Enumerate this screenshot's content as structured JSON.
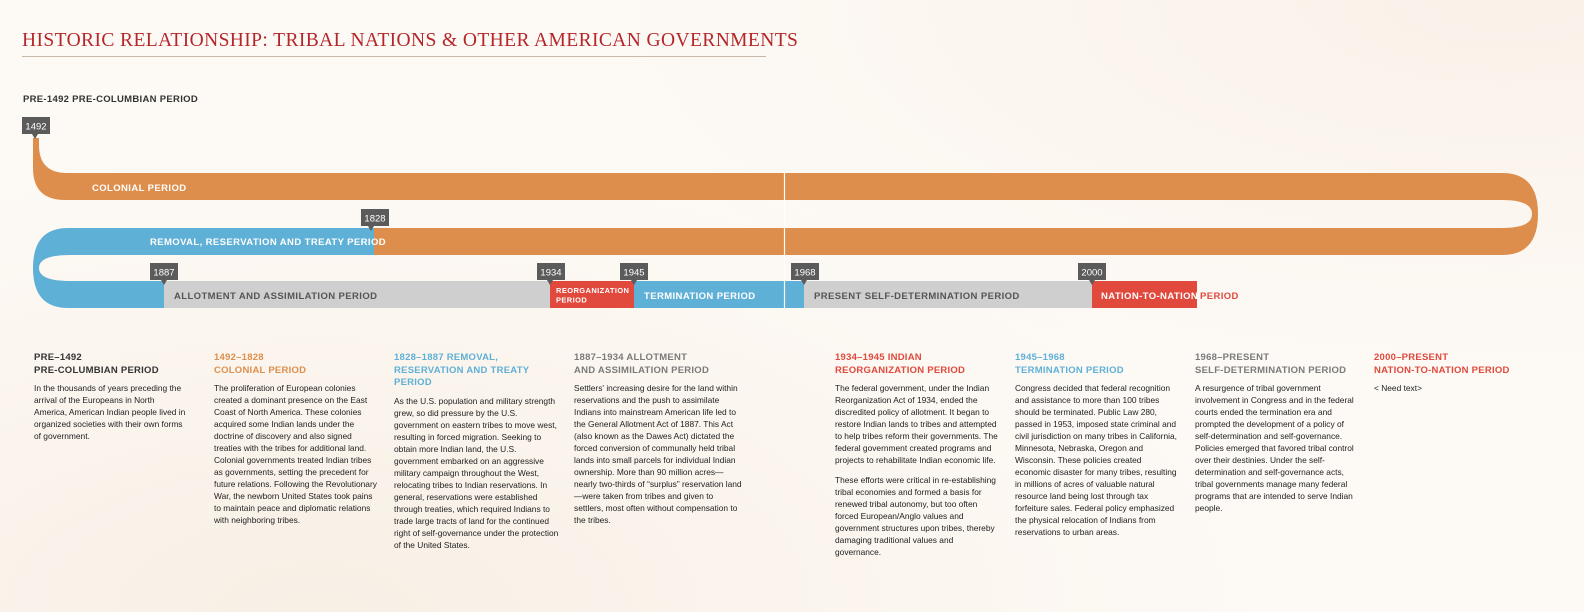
{
  "title": "HISTORIC RELATIONSHIP: TRIBAL NATIONS & OTHER AMERICAN GOVERNMENTS",
  "top_period_heading": "PRE-1492 PRE-COLUMBIAN PERIOD",
  "colors": {
    "orange": "#dd8e4c",
    "blue": "#5fb0d6",
    "gray": "#cfcfcf",
    "red": "#e0493c",
    "marker": "#5b5b5b",
    "title_red": "#b5262a"
  },
  "timeline": {
    "years": {
      "y1492": "1492",
      "y1828": "1828",
      "y1887": "1887",
      "y1934": "1934",
      "y1945": "1945",
      "y1968": "1968",
      "y2000": "2000"
    },
    "bands": {
      "colonial": "COLONIAL PERIOD",
      "removal": "REMOVAL, RESERVATION AND TREATY PERIOD",
      "allotment": "ALLOTMENT AND ASSIMILATION PERIOD",
      "reorg_line1": "REORGANIZATION",
      "reorg_line2": "PERIOD",
      "termination": "TERMINATION PERIOD",
      "self_determination": "PRESENT SELF-DETERMINATION PERIOD",
      "nation_a": "NATION-TO-NATION",
      "nation_b": "PERIOD"
    }
  },
  "columns": [
    {
      "h1": "PRE–1492",
      "h2": "PRE-COLUMBIAN PERIOD",
      "paragraphs": [
        "In the thousands of years preceding the arrival of the Europeans in North America, American Indian people lived in organized societies with their own forms of government."
      ]
    },
    {
      "h1": "1492–1828",
      "h2": "COLONIAL PERIOD",
      "paragraphs": [
        "The proliferation of European colonies created a dominant presence on the East Coast of North America. These colonies acquired some Indian lands under the doctrine of discovery and also signed treaties with the tribes for additional land. Colonial governments treated Indian tribes as governments, setting the precedent for future relations. Following the Revolutionary War, the newborn United States took pains to maintain peace and diplomatic relations with neighboring tribes."
      ]
    },
    {
      "h1": "1828–1887 REMOVAL,",
      "h2": "RESERVATION AND TREATY PERIOD",
      "paragraphs": [
        "As the U.S. population and military strength grew, so did pressure by the U.S. government on eastern tribes to move west, resulting in forced migration. Seeking to obtain more Indian land, the U.S. government embarked on an aggressive military campaign throughout the West, relocating tribes to Indian reservations. In general, reservations were established through treaties, which required Indians to trade large tracts of land for the continued right of self-governance under the protection of the United States."
      ]
    },
    {
      "h1": "1887–1934 ALLOTMENT",
      "h2": "AND ASSIMILATION PERIOD",
      "paragraphs": [
        "Settlers' increasing desire for the land within reservations and the push to assimilate Indians into mainstream American life led to the General Allotment Act of 1887. This Act (also known as the Dawes Act) dictated the forced conversion of communally held tribal lands into small parcels for individual Indian ownership. More than 90 million acres—nearly two-thirds of “surplus” reservation land—were taken from tribes and given to settlers, most often without compensation to the tribes."
      ]
    },
    {
      "h1": "1934–1945 INDIAN",
      "h2": "REORGANIZATION PERIOD",
      "paragraphs": [
        "The federal government, under the Indian Reorganization Act of 1934, ended the discredited policy of allotment. It began to restore Indian lands to tribes and attempted to help tribes reform their governments. The federal government created programs and projects to rehabilitate Indian economic life.",
        "These efforts were critical in re-establishing tribal economies and formed a basis for renewed tribal autonomy, but too often forced European/Anglo values and government structures upon tribes, thereby damaging traditional values and governance."
      ]
    },
    {
      "h1": "1945–1968",
      "h2": "TERMINATION PERIOD",
      "paragraphs": [
        "Congress decided that federal recognition and assistance to more than 100 tribes should be terminated. Public Law 280, passed in 1953, imposed state criminal and civil jurisdiction on many tribes in California, Minnesota, Nebraska, Oregon and Wisconsin. These policies created economic disaster for many tribes, resulting in millions of acres of valuable natural resource land being lost through tax forfeiture sales. Federal policy emphasized the physical relocation of Indians from reservations to urban areas."
      ]
    },
    {
      "h1": "1968–PRESENT",
      "h2": "SELF-DETERMINATION PERIOD",
      "paragraphs": [
        "A resurgence of tribal government involvement in Congress and in the federal courts ended the termination era and prompted the development of a policy of self-determination and self-governance. Policies emerged that favored tribal control over their destinies. Under the self-determination and self-governance acts, tribal governments manage many federal programs that are intended to serve Indian people."
      ]
    },
    {
      "h1": "2000–PRESENT",
      "h2": "NATION-TO-NATION PERIOD",
      "paragraphs": [
        "< Need text>"
      ]
    }
  ]
}
